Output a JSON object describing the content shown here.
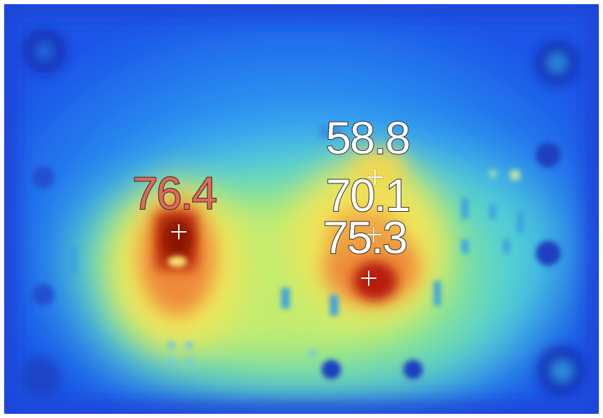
{
  "thermal_image": {
    "palette": "rainbow",
    "colors": {
      "cold": "#1a55e8",
      "cool": "#2fb4f0",
      "mid": "#9be87a",
      "warm": "#f2e65a",
      "hot": "#ee8a3a",
      "hottest": "#b81e0a"
    },
    "spots": [
      {
        "id": "spot-1",
        "label": "76.4",
        "color": "#e06a55"
      },
      {
        "id": "spot-2",
        "label": "58.8",
        "color": "#ffffff"
      },
      {
        "id": "spot-3",
        "label": "70.1",
        "color": "#ffffff"
      },
      {
        "id": "spot-4",
        "label": "75.3",
        "color": "#ffffff"
      }
    ]
  }
}
